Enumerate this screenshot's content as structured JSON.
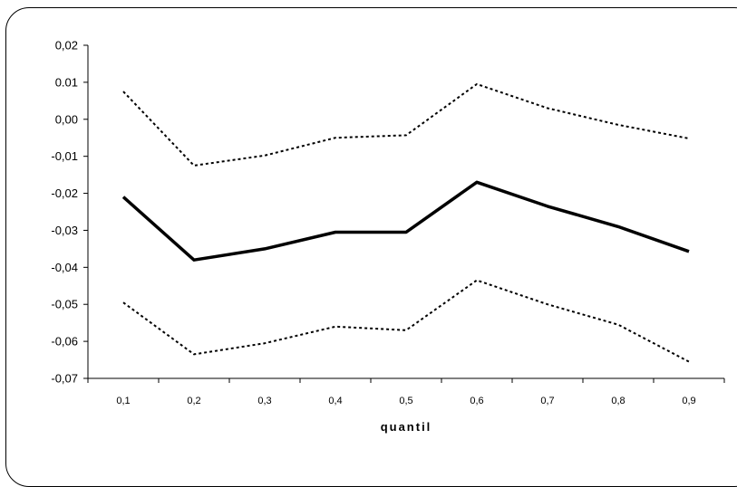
{
  "chart_data": {
    "type": "line",
    "title": "",
    "xlabel": "quantil",
    "ylabel": "",
    "categories": [
      "0,1",
      "0,2",
      "0,3",
      "0,4",
      "0,5",
      "0,6",
      "0,7",
      "0,8",
      "0,9"
    ],
    "x": [
      0.1,
      0.2,
      0.3,
      0.4,
      0.5,
      0.6,
      0.7,
      0.8,
      0.9
    ],
    "yticks": [
      "0,02",
      "0.01",
      "0,00",
      "-0,01",
      "-0,02",
      "-0,03",
      "-0,04",
      "-0,05",
      "-0,06",
      "-0,07"
    ],
    "ylim": [
      -0.07,
      0.02
    ],
    "grid": false,
    "legend": "none",
    "series": [
      {
        "style": "solid",
        "color": "#000000",
        "values": [
          -0.021,
          -0.038,
          -0.035,
          -0.0305,
          -0.0305,
          -0.017,
          -0.0235,
          -0.029,
          -0.0357
        ]
      },
      {
        "style": "dotted",
        "color": "#000000",
        "values": [
          0.0075,
          -0.0125,
          -0.0098,
          -0.005,
          -0.0043,
          0.0095,
          0.003,
          -0.0015,
          -0.0052
        ]
      },
      {
        "style": "dotted",
        "color": "#000000",
        "values": [
          -0.0495,
          -0.0635,
          -0.0605,
          -0.056,
          -0.057,
          -0.0435,
          -0.05,
          -0.0555,
          -0.0655
        ]
      }
    ]
  }
}
